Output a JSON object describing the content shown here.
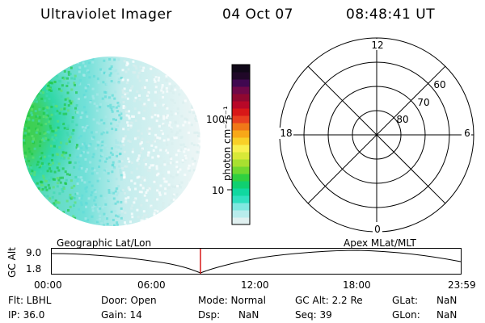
{
  "header": {
    "title": "Ultraviolet Imager",
    "date": "04 Oct 07",
    "time": "08:48:41 UT"
  },
  "colorbar": {
    "label": "photon cm⁻²s⁻¹",
    "ticks": [
      "100",
      "10"
    ],
    "colors": [
      "#e0f0f0",
      "#b8ecec",
      "#80e8e0",
      "#30e0c0",
      "#10d8a0",
      "#10d070",
      "#30d040",
      "#70d830",
      "#a8e030",
      "#d8e838",
      "#f8f050",
      "#f8d028",
      "#f8a818",
      "#f07818",
      "#e84020",
      "#d81818",
      "#b80828",
      "#900830",
      "#700848",
      "#400850",
      "#200828",
      "#100818"
    ]
  },
  "polar": {
    "mlt_labels": {
      "top": "12",
      "right": "6",
      "bottom": "0",
      "left": "18"
    },
    "lat_labels": [
      "60",
      "70",
      "80"
    ]
  },
  "timeline": {
    "y_label": "GC Alt",
    "y_ticks": [
      "9.0",
      "1.8"
    ],
    "left_label": "Geographic Lat/Lon",
    "right_label": "Apex  MLat/MLT",
    "x_ticks": [
      "00:00",
      "06:00",
      "12:00",
      "18:00",
      "23:59"
    ]
  },
  "status": {
    "flt": "Flt: LBHL",
    "ip": "IP: 36.0",
    "door": "Door: Open",
    "gain": "Gain: 14",
    "mode": "Mode: Normal",
    "dsp": "Dsp:      NaN",
    "gc_alt": "GC Alt: 2.2 Re",
    "seq": "Seq: 39",
    "glat_label": "GLat:",
    "glat_value": "NaN",
    "glon_label": "GLon:",
    "glon_value": "NaN"
  }
}
